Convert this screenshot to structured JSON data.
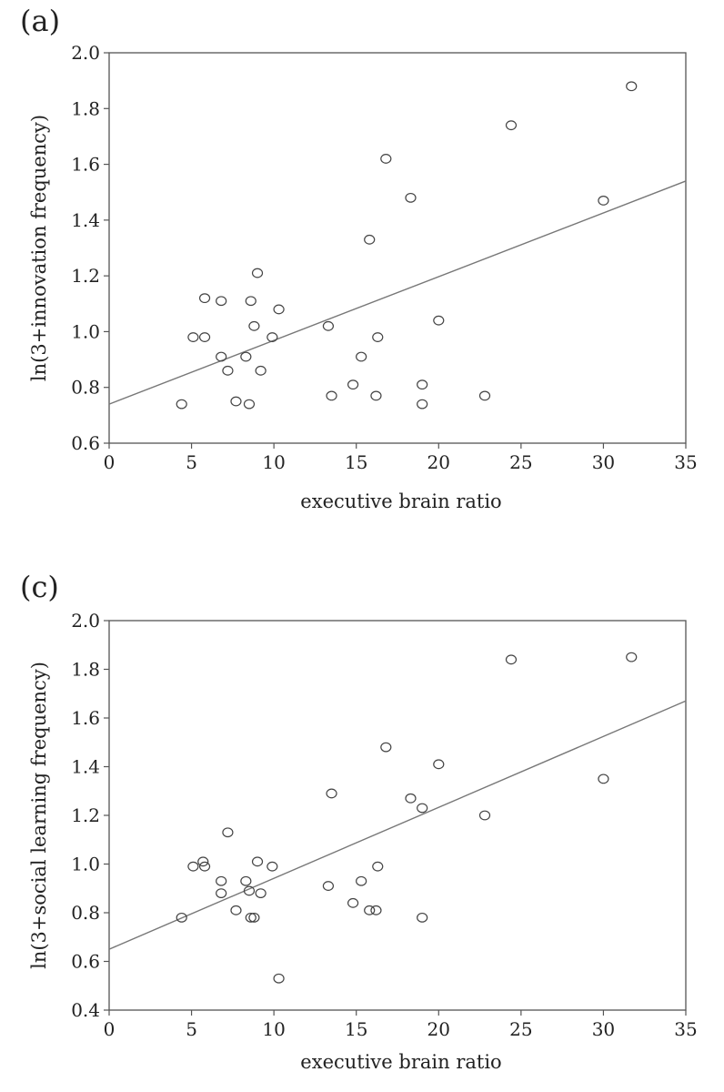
{
  "chart_data": [
    {
      "type": "scatter",
      "panel_label": "(a)",
      "xlabel": "executive brain ratio",
      "ylabel": "ln(3+innovation frequency)",
      "xlim": [
        0,
        35
      ],
      "ylim": [
        0.6,
        2.0
      ],
      "xticks": [
        "0",
        "5",
        "10",
        "15",
        "20",
        "25",
        "30",
        "35"
      ],
      "yticks": [
        "0.6",
        "0.8",
        "1.0",
        "1.2",
        "1.4",
        "1.6",
        "1.8",
        "2.0"
      ],
      "grid": false,
      "points": [
        {
          "x": 4.4,
          "y": 0.74
        },
        {
          "x": 5.1,
          "y": 0.98
        },
        {
          "x": 5.8,
          "y": 0.98
        },
        {
          "x": 5.8,
          "y": 1.12
        },
        {
          "x": 6.8,
          "y": 1.11
        },
        {
          "x": 6.8,
          "y": 0.91
        },
        {
          "x": 7.2,
          "y": 0.86
        },
        {
          "x": 7.7,
          "y": 0.75
        },
        {
          "x": 8.3,
          "y": 0.91
        },
        {
          "x": 8.5,
          "y": 0.74
        },
        {
          "x": 8.6,
          "y": 1.11
        },
        {
          "x": 8.8,
          "y": 1.02
        },
        {
          "x": 9.0,
          "y": 1.21
        },
        {
          "x": 9.2,
          "y": 0.86
        },
        {
          "x": 9.9,
          "y": 0.98
        },
        {
          "x": 10.3,
          "y": 1.08
        },
        {
          "x": 13.3,
          "y": 1.02
        },
        {
          "x": 13.5,
          "y": 0.77
        },
        {
          "x": 14.8,
          "y": 0.81
        },
        {
          "x": 15.3,
          "y": 0.91
        },
        {
          "x": 15.8,
          "y": 1.33
        },
        {
          "x": 16.2,
          "y": 0.77
        },
        {
          "x": 16.3,
          "y": 0.98
        },
        {
          "x": 16.8,
          "y": 1.62
        },
        {
          "x": 18.3,
          "y": 1.48
        },
        {
          "x": 19.0,
          "y": 0.81
        },
        {
          "x": 19.0,
          "y": 0.74
        },
        {
          "x": 20.0,
          "y": 1.04
        },
        {
          "x": 22.8,
          "y": 0.77
        },
        {
          "x": 24.4,
          "y": 1.74
        },
        {
          "x": 30.0,
          "y": 1.47
        },
        {
          "x": 31.7,
          "y": 1.88
        }
      ],
      "trendline": {
        "x": [
          0,
          35
        ],
        "y": [
          0.74,
          1.54
        ]
      }
    },
    {
      "type": "scatter",
      "panel_label": "(c)",
      "xlabel": "executive brain ratio",
      "ylabel": "ln(3+social learning frequency)",
      "xlim": [
        0,
        35
      ],
      "ylim": [
        0.4,
        2.0
      ],
      "xticks": [
        "0",
        "5",
        "10",
        "15",
        "20",
        "25",
        "30",
        "35"
      ],
      "yticks": [
        "0.4",
        "0.6",
        "0.8",
        "1.0",
        "1.2",
        "1.4",
        "1.6",
        "1.8",
        "2.0"
      ],
      "grid": false,
      "points": [
        {
          "x": 4.4,
          "y": 0.78
        },
        {
          "x": 5.1,
          "y": 0.99
        },
        {
          "x": 5.7,
          "y": 1.01
        },
        {
          "x": 5.8,
          "y": 0.99
        },
        {
          "x": 6.8,
          "y": 0.93
        },
        {
          "x": 6.8,
          "y": 0.88
        },
        {
          "x": 7.2,
          "y": 1.13
        },
        {
          "x": 7.7,
          "y": 0.81
        },
        {
          "x": 8.3,
          "y": 0.93
        },
        {
          "x": 8.5,
          "y": 0.89
        },
        {
          "x": 8.6,
          "y": 0.78
        },
        {
          "x": 8.8,
          "y": 0.78
        },
        {
          "x": 9.0,
          "y": 1.01
        },
        {
          "x": 9.2,
          "y": 0.88
        },
        {
          "x": 9.9,
          "y": 0.99
        },
        {
          "x": 10.3,
          "y": 0.53
        },
        {
          "x": 13.3,
          "y": 0.91
        },
        {
          "x": 13.5,
          "y": 1.29
        },
        {
          "x": 14.8,
          "y": 0.84
        },
        {
          "x": 15.3,
          "y": 0.93
        },
        {
          "x": 15.8,
          "y": 0.81
        },
        {
          "x": 16.2,
          "y": 0.81
        },
        {
          "x": 16.3,
          "y": 0.99
        },
        {
          "x": 16.8,
          "y": 1.48
        },
        {
          "x": 18.3,
          "y": 1.27
        },
        {
          "x": 19.0,
          "y": 1.23
        },
        {
          "x": 19.0,
          "y": 0.78
        },
        {
          "x": 20.0,
          "y": 1.41
        },
        {
          "x": 22.8,
          "y": 1.2
        },
        {
          "x": 24.4,
          "y": 1.84
        },
        {
          "x": 30.0,
          "y": 1.35
        },
        {
          "x": 31.7,
          "y": 1.85
        }
      ],
      "trendline": {
        "x": [
          0,
          35
        ],
        "y": [
          0.65,
          1.67
        ]
      }
    }
  ]
}
